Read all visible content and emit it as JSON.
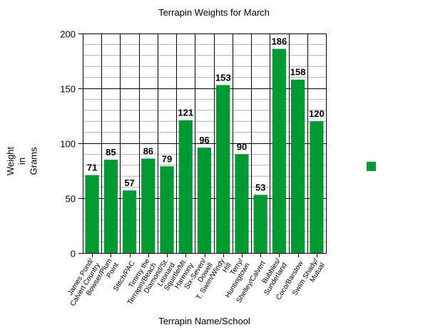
{
  "chart_data": {
    "type": "bar",
    "title": "Terrapin Weights for March",
    "xlabel": "Terrapin Name/School",
    "ylabel": [
      "Weight",
      "in",
      "Grams"
    ],
    "ylim": [
      0,
      200
    ],
    "yticks": [
      0,
      50,
      100,
      150,
      200
    ],
    "grid": {
      "major_step": 50,
      "minor_step": 10,
      "vertical_category_lines": true
    },
    "bar_color": "#009933",
    "legend": {
      "position": "right",
      "entries": [
        ""
      ]
    },
    "categories": [
      [
        "James Pond/",
        "Calvert Country"
      ],
      [
        "Bowser/Plum",
        "Point"
      ],
      [
        "Stitch/PAC"
      ],
      [
        "Timmy the",
        "Terrapin/Beach"
      ],
      [
        "Diamond/St.",
        "Leonard"
      ],
      [
        "Squirtle/Mt.",
        "Harmony"
      ],
      [
        "Six-Seven/",
        "Dowell"
      ],
      [
        "T. Swim/Windy",
        "Hill"
      ],
      [
        "Terry/",
        "Huntingtown"
      ],
      [
        "Shelley/Calvert"
      ],
      [
        "Bubbles/",
        "Sunderland"
      ],
      [
        "Coco/Barstow"
      ],
      [
        "Swim Shady/",
        "Mutual"
      ]
    ],
    "values": [
      71,
      85,
      57,
      86,
      79,
      121,
      96,
      153,
      90,
      53,
      186,
      158,
      120
    ]
  }
}
